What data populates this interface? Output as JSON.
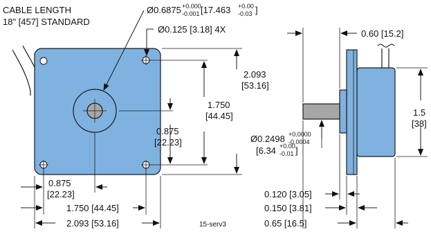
{
  "labels": {
    "cable_line1": "CABLE LENGTH",
    "cable_line2": "18\" [457] STANDARD",
    "pilot_dia_main": "Ø0.6875",
    "pilot_dia_tol_upper": "+0.000",
    "pilot_dia_tol_lower": "-0.001",
    "pilot_dia_metric_main": " [17.463",
    "pilot_dia_metric_tol_upper": "+0.00",
    "pilot_dia_metric_tol_lower": "-0.03",
    "pilot_dia_close": "]",
    "hole_dia": "Ø0.125 [3.18] 4X",
    "height_total_in": "2.093",
    "height_total_mm": "[53.16]",
    "hole_spacing_v_in": "1.750",
    "hole_spacing_v_mm": "[44.45]",
    "center_v_in": "0.875",
    "center_v_mm": "[22.23]",
    "center_h_in": "0.875",
    "center_h_mm": "[22.23]",
    "hole_spacing_h": "1.750 [44.45]",
    "width_total": "2.093 [53.16]",
    "ref_code": "15-serv3",
    "body_depth": "0.60 [15.2]",
    "side_height_in": "1.5",
    "side_height_mm": "[38]",
    "shaft_dia_main": "Ø0.2498",
    "shaft_dia_tol_upper": "+0.0000",
    "shaft_dia_tol_lower": "-0.0004",
    "shaft_dia_metric_main": "[6.34",
    "shaft_dia_metric_tol_upper": "+0.00",
    "shaft_dia_metric_tol_lower": "-0.01",
    "shaft_dia_metric_close": "]",
    "hub_thickness": "0.120 [3.05]",
    "flange_thickness": "0.150 [3.81]",
    "shaft_length": "0.65 [16.5]"
  },
  "colors": {
    "body_fill": "#7fb2e0",
    "body_stroke": "#1a1a1a",
    "shaft_fill": "#a6a6a6",
    "line": "#1a1a1a"
  }
}
